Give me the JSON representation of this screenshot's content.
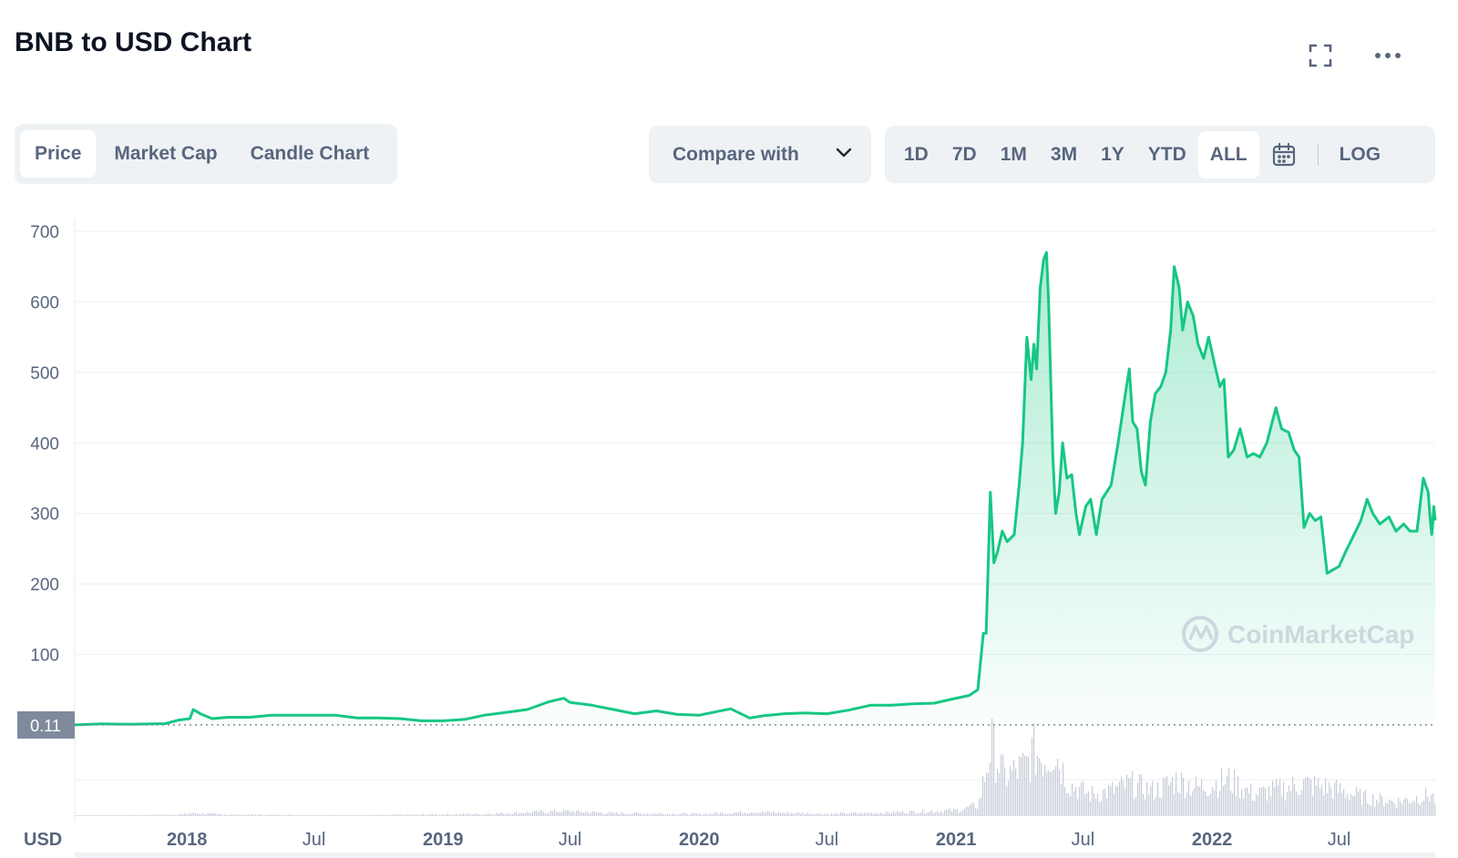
{
  "header": {
    "title": "BNB to USD Chart"
  },
  "icons": {
    "fullscreen": "fullscreen-icon",
    "more": "more-icon",
    "calendar": "calendar-icon",
    "dropdown": "chevron-down-icon"
  },
  "tabs": [
    {
      "label": "Price",
      "active": true
    },
    {
      "label": "Market Cap",
      "active": false
    },
    {
      "label": "Candle Chart",
      "active": false
    }
  ],
  "compare": {
    "label": "Compare with"
  },
  "ranges": [
    {
      "label": "1D",
      "active": false
    },
    {
      "label": "7D",
      "active": false
    },
    {
      "label": "1M",
      "active": false
    },
    {
      "label": "3M",
      "active": false
    },
    {
      "label": "1Y",
      "active": false
    },
    {
      "label": "YTD",
      "active": false
    },
    {
      "label": "ALL",
      "active": true
    }
  ],
  "log_label": "LOG",
  "colors": {
    "line": "#16c784",
    "grid": "#eff2f5",
    "text": "#58667e",
    "price_tag": "#808a9d"
  },
  "chart_data": {
    "type": "area",
    "currency_label": "USD",
    "current_price_label": "0.11",
    "watermark": "CoinMarketCap",
    "ylim": [
      0,
      700
    ],
    "yticks": [
      100,
      200,
      300,
      400,
      500,
      600,
      700
    ],
    "xlim": [
      "2017-07-25",
      "2022-11-15"
    ],
    "xticks": [
      {
        "date": "2018-01-01",
        "label": "2018",
        "bold": true
      },
      {
        "date": "2018-07-01",
        "label": "Jul",
        "bold": false
      },
      {
        "date": "2019-01-01",
        "label": "2019",
        "bold": true
      },
      {
        "date": "2019-07-01",
        "label": "Jul",
        "bold": false
      },
      {
        "date": "2020-01-01",
        "label": "2020",
        "bold": true
      },
      {
        "date": "2020-07-01",
        "label": "Jul",
        "bold": false
      },
      {
        "date": "2021-01-01",
        "label": "2021",
        "bold": true
      },
      {
        "date": "2021-07-01",
        "label": "Jul",
        "bold": false
      },
      {
        "date": "2022-01-01",
        "label": "2022",
        "bold": true
      },
      {
        "date": "2022-07-01",
        "label": "Jul",
        "bold": false
      }
    ],
    "price": [
      [
        "2017-07-25",
        0.11
      ],
      [
        "2017-09-01",
        1.5
      ],
      [
        "2017-10-15",
        1.2
      ],
      [
        "2017-12-01",
        2
      ],
      [
        "2017-12-20",
        7
      ],
      [
        "2018-01-05",
        9
      ],
      [
        "2018-01-10",
        22
      ],
      [
        "2018-01-20",
        16
      ],
      [
        "2018-02-06",
        9
      ],
      [
        "2018-03-01",
        11
      ],
      [
        "2018-04-01",
        11
      ],
      [
        "2018-05-01",
        14
      ],
      [
        "2018-06-01",
        14
      ],
      [
        "2018-07-01",
        14
      ],
      [
        "2018-08-01",
        14
      ],
      [
        "2018-09-01",
        10
      ],
      [
        "2018-10-01",
        10
      ],
      [
        "2018-11-01",
        9
      ],
      [
        "2018-12-01",
        6
      ],
      [
        "2019-01-01",
        6
      ],
      [
        "2019-02-01",
        8
      ],
      [
        "2019-03-01",
        14
      ],
      [
        "2019-04-01",
        18
      ],
      [
        "2019-05-01",
        22
      ],
      [
        "2019-06-01",
        33
      ],
      [
        "2019-06-22",
        38
      ],
      [
        "2019-07-01",
        32
      ],
      [
        "2019-08-01",
        28
      ],
      [
        "2019-09-01",
        22
      ],
      [
        "2019-10-01",
        16
      ],
      [
        "2019-11-01",
        20
      ],
      [
        "2019-12-01",
        15
      ],
      [
        "2020-01-01",
        14
      ],
      [
        "2020-02-15",
        23
      ],
      [
        "2020-03-13",
        10
      ],
      [
        "2020-04-01",
        13
      ],
      [
        "2020-05-01",
        16
      ],
      [
        "2020-06-01",
        17
      ],
      [
        "2020-07-01",
        16
      ],
      [
        "2020-08-01",
        21
      ],
      [
        "2020-09-01",
        28
      ],
      [
        "2020-10-01",
        28
      ],
      [
        "2020-11-01",
        30
      ],
      [
        "2020-12-01",
        31
      ],
      [
        "2021-01-01",
        38
      ],
      [
        "2021-01-20",
        42
      ],
      [
        "2021-02-01",
        50
      ],
      [
        "2021-02-09",
        130
      ],
      [
        "2021-02-13",
        130
      ],
      [
        "2021-02-19",
        330
      ],
      [
        "2021-02-24",
        230
      ],
      [
        "2021-03-01",
        245
      ],
      [
        "2021-03-08",
        275
      ],
      [
        "2021-03-15",
        260
      ],
      [
        "2021-03-25",
        270
      ],
      [
        "2021-04-01",
        340
      ],
      [
        "2021-04-06",
        400
      ],
      [
        "2021-04-12",
        550
      ],
      [
        "2021-04-18",
        490
      ],
      [
        "2021-04-22",
        540
      ],
      [
        "2021-04-26",
        505
      ],
      [
        "2021-05-01",
        620
      ],
      [
        "2021-05-06",
        660
      ],
      [
        "2021-05-10",
        670
      ],
      [
        "2021-05-13",
        600
      ],
      [
        "2021-05-19",
        380
      ],
      [
        "2021-05-23",
        300
      ],
      [
        "2021-05-28",
        330
      ],
      [
        "2021-06-02",
        400
      ],
      [
        "2021-06-08",
        350
      ],
      [
        "2021-06-15",
        355
      ],
      [
        "2021-06-21",
        300
      ],
      [
        "2021-06-26",
        270
      ],
      [
        "2021-07-05",
        310
      ],
      [
        "2021-07-12",
        320
      ],
      [
        "2021-07-20",
        270
      ],
      [
        "2021-07-28",
        320
      ],
      [
        "2021-08-10",
        340
      ],
      [
        "2021-08-20",
        400
      ],
      [
        "2021-09-01",
        480
      ],
      [
        "2021-09-05",
        505
      ],
      [
        "2021-09-10",
        430
      ],
      [
        "2021-09-16",
        420
      ],
      [
        "2021-09-22",
        360
      ],
      [
        "2021-09-28",
        340
      ],
      [
        "2021-10-05",
        430
      ],
      [
        "2021-10-12",
        470
      ],
      [
        "2021-10-20",
        480
      ],
      [
        "2021-10-27",
        500
      ],
      [
        "2021-11-03",
        560
      ],
      [
        "2021-11-08",
        650
      ],
      [
        "2021-11-15",
        620
      ],
      [
        "2021-11-20",
        560
      ],
      [
        "2021-11-27",
        600
      ],
      [
        "2021-12-05",
        580
      ],
      [
        "2021-12-12",
        540
      ],
      [
        "2021-12-20",
        520
      ],
      [
        "2021-12-27",
        550
      ],
      [
        "2022-01-05",
        510
      ],
      [
        "2022-01-12",
        480
      ],
      [
        "2022-01-18",
        490
      ],
      [
        "2022-01-24",
        380
      ],
      [
        "2022-02-01",
        390
      ],
      [
        "2022-02-10",
        420
      ],
      [
        "2022-02-20",
        380
      ],
      [
        "2022-03-01",
        385
      ],
      [
        "2022-03-10",
        380
      ],
      [
        "2022-03-20",
        400
      ],
      [
        "2022-04-02",
        450
      ],
      [
        "2022-04-10",
        420
      ],
      [
        "2022-04-20",
        415
      ],
      [
        "2022-04-28",
        390
      ],
      [
        "2022-05-05",
        380
      ],
      [
        "2022-05-12",
        280
      ],
      [
        "2022-05-20",
        300
      ],
      [
        "2022-05-28",
        290
      ],
      [
        "2022-06-05",
        295
      ],
      [
        "2022-06-14",
        215
      ],
      [
        "2022-06-22",
        220
      ],
      [
        "2022-07-01",
        225
      ],
      [
        "2022-07-10",
        245
      ],
      [
        "2022-07-20",
        265
      ],
      [
        "2022-08-01",
        290
      ],
      [
        "2022-08-10",
        320
      ],
      [
        "2022-08-18",
        300
      ],
      [
        "2022-08-28",
        285
      ],
      [
        "2022-09-10",
        295
      ],
      [
        "2022-09-20",
        275
      ],
      [
        "2022-10-01",
        285
      ],
      [
        "2022-10-10",
        275
      ],
      [
        "2022-10-20",
        275
      ],
      [
        "2022-10-29",
        350
      ],
      [
        "2022-11-05",
        330
      ],
      [
        "2022-11-08",
        290
      ],
      [
        "2022-11-10",
        270
      ],
      [
        "2022-11-13",
        310
      ],
      [
        "2022-11-15",
        290
      ]
    ],
    "volume": [
      [
        "2017-07-25",
        0.0
      ],
      [
        "2017-12-15",
        0.02
      ],
      [
        "2018-01-10",
        0.04
      ],
      [
        "2018-03-01",
        0.02
      ],
      [
        "2018-09-01",
        0.01
      ],
      [
        "2019-03-01",
        0.03
      ],
      [
        "2019-06-20",
        0.07
      ],
      [
        "2019-09-01",
        0.04
      ],
      [
        "2020-01-01",
        0.03
      ],
      [
        "2020-03-13",
        0.06
      ],
      [
        "2020-07-01",
        0.03
      ],
      [
        "2020-10-01",
        0.05
      ],
      [
        "2021-01-01",
        0.08
      ],
      [
        "2021-02-01",
        0.15
      ],
      [
        "2021-02-10",
        0.55
      ],
      [
        "2021-02-20",
        1.0
      ],
      [
        "2021-03-10",
        0.55
      ],
      [
        "2021-04-10",
        0.7
      ],
      [
        "2021-04-20",
        0.9
      ],
      [
        "2021-05-10",
        0.8
      ],
      [
        "2021-05-19",
        0.95
      ],
      [
        "2021-06-10",
        0.45
      ],
      [
        "2021-07-10",
        0.3
      ],
      [
        "2021-08-10",
        0.35
      ],
      [
        "2021-09-05",
        0.45
      ],
      [
        "2021-10-10",
        0.35
      ],
      [
        "2021-11-10",
        0.5
      ],
      [
        "2021-12-10",
        0.4
      ],
      [
        "2022-01-24",
        0.5
      ],
      [
        "2022-03-01",
        0.3
      ],
      [
        "2022-05-12",
        0.45
      ],
      [
        "2022-06-14",
        0.4
      ],
      [
        "2022-08-10",
        0.25
      ],
      [
        "2022-09-20",
        0.2
      ],
      [
        "2022-11-09",
        0.3
      ],
      [
        "2022-11-15",
        0.2
      ]
    ]
  }
}
